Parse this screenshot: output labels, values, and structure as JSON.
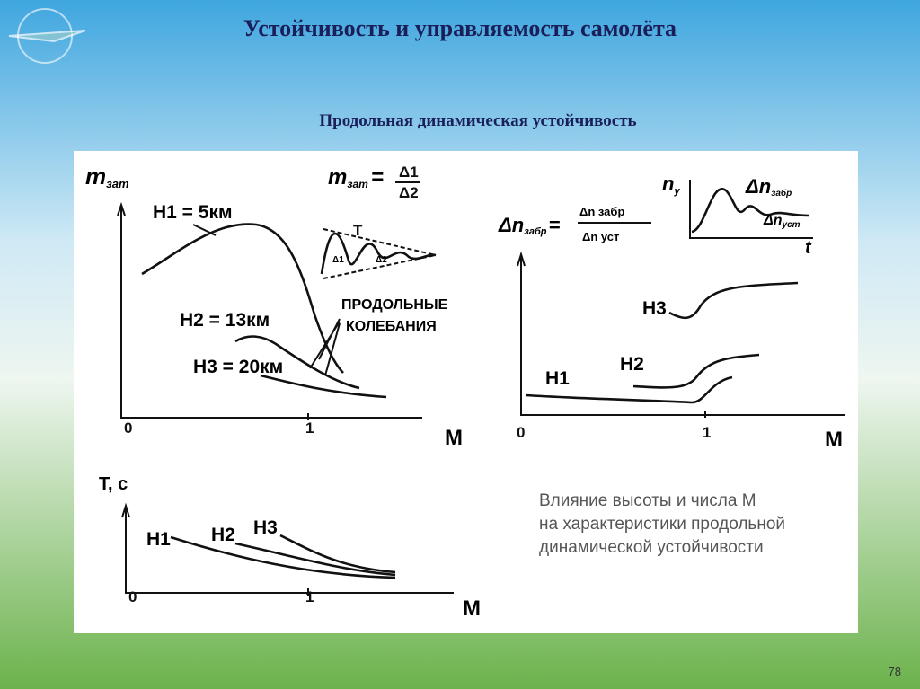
{
  "header": {
    "title": "Устойчивость и управляемость самолёта",
    "subtitle": "Продольная динамическая устойчивость"
  },
  "figure": {
    "panel1": {
      "y_label": {
        "main": "m",
        "sub": "зат"
      },
      "formula": {
        "lhs": "m",
        "lhs_sub": "зат",
        "eq": "=",
        "num": "Δ1",
        "den": "Δ2"
      },
      "origin": "0",
      "x_tick": "1",
      "x_label": "M",
      "curves": [
        "H1 = 5км",
        "H2 = 13км",
        "H3 = 20км"
      ],
      "inset_label": "T",
      "inset_d1": "Δ1",
      "inset_d2": "Δ2",
      "note": [
        "ПРОДОЛЬНЫЕ",
        "КОЛЕБАНИЯ"
      ]
    },
    "panel2": {
      "y_label": {
        "num": "Δn",
        "num_sub": "забр",
        "eq": "=",
        "frac_num": "Δn забр",
        "frac_den": "Δn уст"
      },
      "inset": {
        "y": "n",
        "y_sub": "y",
        "peak": "Δn",
        "peak_sub": "забр",
        "steady": "Δn",
        "steady_sub": "уст",
        "x": "t"
      },
      "origin": "0",
      "x_tick": "1",
      "x_label": "M",
      "curves": [
        "H3",
        "H2",
        "H1"
      ]
    },
    "panel3": {
      "y_label": "T, с",
      "origin": "0",
      "x_tick": "1",
      "x_label": "M",
      "curves": [
        "H1",
        "H2",
        "H3"
      ]
    },
    "caption": [
      "Влияние высоты и числа М",
      "на характеристики продольной",
      "динамической устойчивости"
    ]
  },
  "page_number": "78"
}
